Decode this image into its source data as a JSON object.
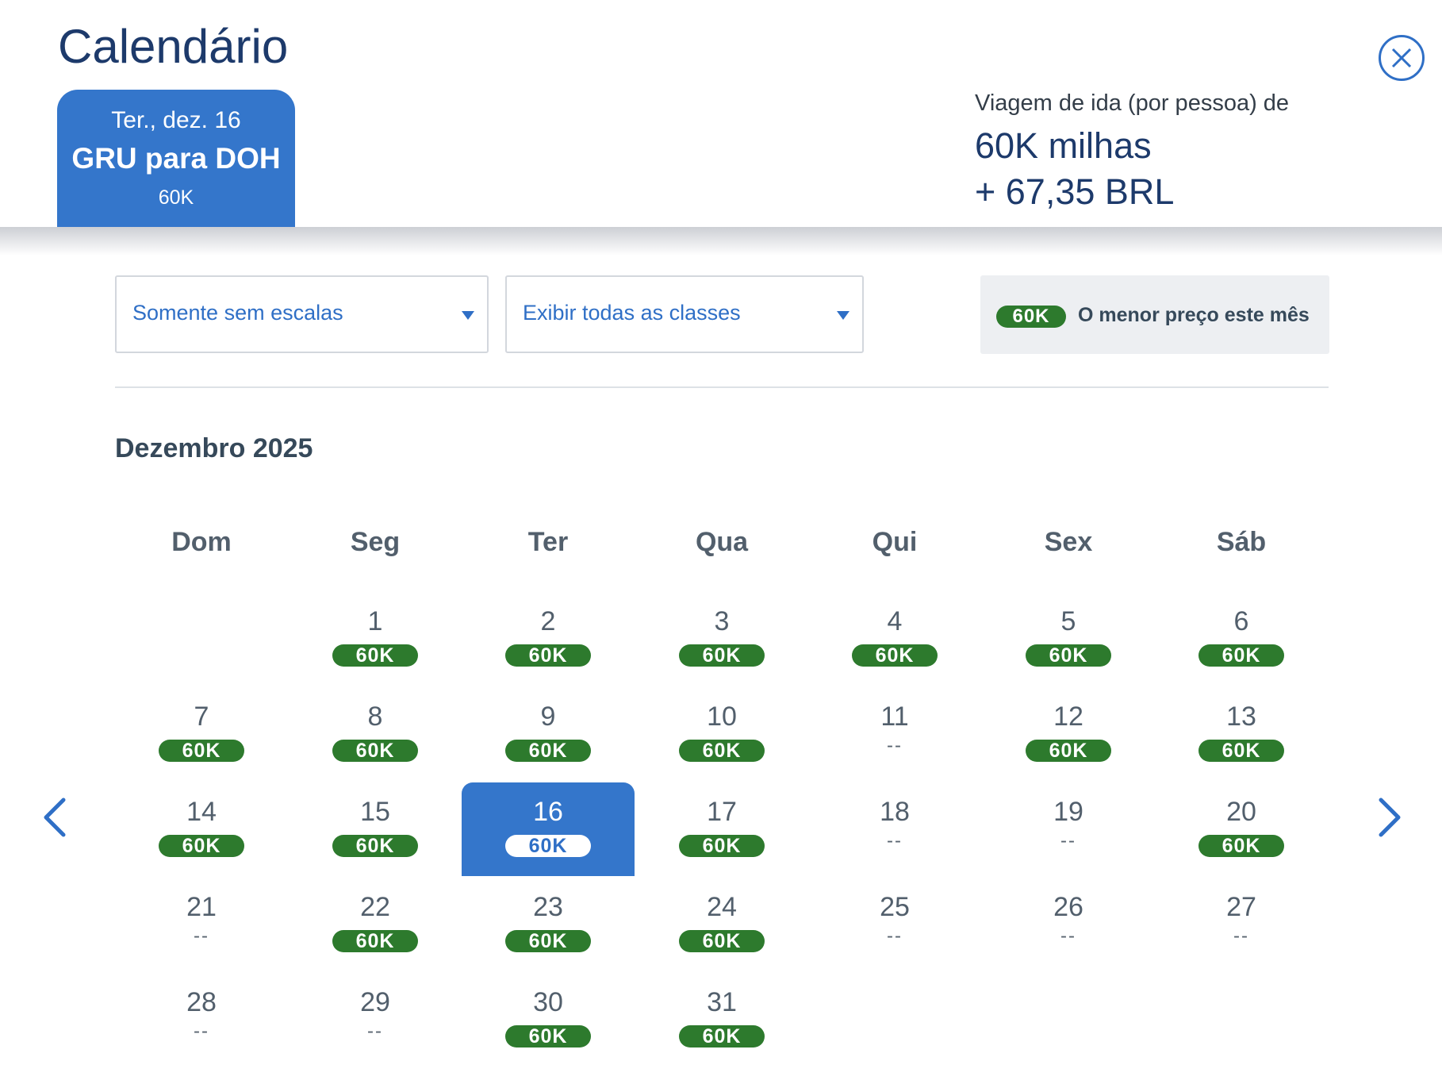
{
  "header": {
    "title": "Calendário",
    "trip_tab": {
      "date": "Ter., dez. 16",
      "route": "GRU para DOH",
      "price": "60K"
    },
    "fare": {
      "label": "Viagem de ida (por pessoa) de",
      "miles": "60K milhas",
      "cash": "+ 67,35 BRL"
    }
  },
  "filters": {
    "stops": {
      "value": "Somente sem escalas"
    },
    "classes": {
      "value": "Exibir todas as classes"
    },
    "legend": {
      "badge": "60K",
      "text": "O menor preço este mês"
    }
  },
  "calendar": {
    "month": "Dezembro 2025",
    "weekdays": [
      "Dom",
      "Seg",
      "Ter",
      "Qua",
      "Qui",
      "Sex",
      "Sáb"
    ],
    "first_weekday": 1,
    "selected_day": 16,
    "days": [
      {
        "n": "1",
        "price": "60K"
      },
      {
        "n": "2",
        "price": "60K"
      },
      {
        "n": "3",
        "price": "60K"
      },
      {
        "n": "4",
        "price": "60K"
      },
      {
        "n": "5",
        "price": "60K"
      },
      {
        "n": "6",
        "price": "60K"
      },
      {
        "n": "7",
        "price": "60K"
      },
      {
        "n": "8",
        "price": "60K"
      },
      {
        "n": "9",
        "price": "60K"
      },
      {
        "n": "10",
        "price": "60K"
      },
      {
        "n": "11",
        "price": null
      },
      {
        "n": "12",
        "price": "60K"
      },
      {
        "n": "13",
        "price": "60K"
      },
      {
        "n": "14",
        "price": "60K"
      },
      {
        "n": "15",
        "price": "60K"
      },
      {
        "n": "16",
        "price": "60K"
      },
      {
        "n": "17",
        "price": "60K"
      },
      {
        "n": "18",
        "price": null
      },
      {
        "n": "19",
        "price": null
      },
      {
        "n": "20",
        "price": "60K"
      },
      {
        "n": "21",
        "price": null
      },
      {
        "n": "22",
        "price": "60K"
      },
      {
        "n": "23",
        "price": "60K"
      },
      {
        "n": "24",
        "price": "60K"
      },
      {
        "n": "25",
        "price": null
      },
      {
        "n": "26",
        "price": null
      },
      {
        "n": "27",
        "price": null
      },
      {
        "n": "28",
        "price": null
      },
      {
        "n": "29",
        "price": null
      },
      {
        "n": "30",
        "price": "60K"
      },
      {
        "n": "31",
        "price": "60K"
      }
    ],
    "no_price_text": "--"
  },
  "icons": {
    "close": "close-icon",
    "prev": "chevron-left-icon",
    "next": "chevron-right-icon",
    "dropdown": "caret-down-icon"
  },
  "colors": {
    "brand_blue": "#3476cb",
    "link_blue": "#2f6fc6",
    "title_navy": "#1d3a6b",
    "price_green": "#2d7a2d"
  }
}
